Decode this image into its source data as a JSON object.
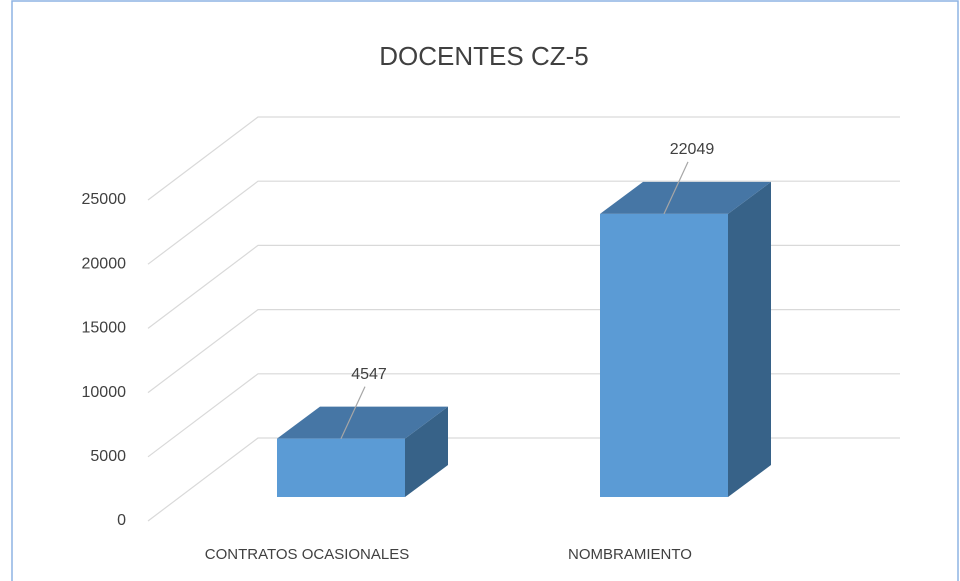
{
  "chart_data": {
    "type": "bar",
    "title": "DOCENTES CZ-5",
    "categories": [
      "CONTRATOS OCASIONALES",
      "NOMBRAMIENTO"
    ],
    "values": [
      4547,
      22049
    ],
    "color": "#5b9bd5",
    "ylim": [
      0,
      25000
    ],
    "yticks": [
      0,
      5000,
      10000,
      15000,
      20000,
      25000
    ],
    "grid": true
  }
}
